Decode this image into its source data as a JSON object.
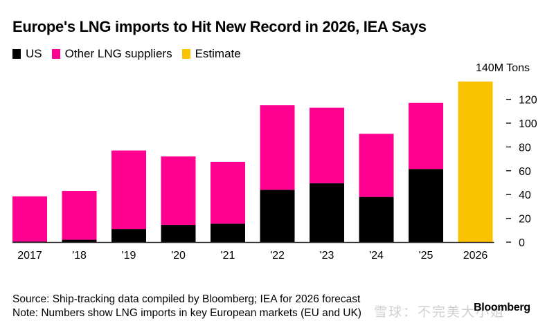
{
  "title": "Europe's LNG imports to Hit New Record in 2026, IEA Says",
  "legend": [
    {
      "label": "US",
      "color": "#000000"
    },
    {
      "label": "Other LNG suppliers",
      "color": "#ff0090"
    },
    {
      "label": "Estimate",
      "color": "#fbc200"
    }
  ],
  "footer": {
    "source": "Source: Ship-tracking data compiled by Bloomberg; IEA for 2026 forecast",
    "note": "Note: Numbers show LNG imports in key European markets (EU and UK)",
    "brand": "Bloomberg",
    "watermark": "雪球：不完美大小姐"
  },
  "chart_data": {
    "type": "bar",
    "stacked": true,
    "title": "Europe's LNG imports to Hit New Record in 2026, IEA Says",
    "xlabel": "",
    "ylabel": "M Tons",
    "y_unit_label": "140M Tons",
    "ylim": [
      0,
      140
    ],
    "yticks": [
      0,
      20,
      40,
      60,
      80,
      100,
      120,
      140
    ],
    "ytick_labels": [
      "0",
      "20",
      "40",
      "60",
      "80",
      "100",
      "120",
      "140M Tons"
    ],
    "y_axis_position": "right",
    "grid": false,
    "legend_position": "top-left",
    "categories": [
      "2017",
      "'18",
      "'19",
      "'20",
      "'21",
      "'22",
      "'23",
      "'24",
      "'25",
      "2026"
    ],
    "series": [
      {
        "name": "US",
        "color": "#000000",
        "values": [
          0.5,
          2,
          11,
          14.5,
          15.5,
          44,
          49.5,
          38,
          61.5,
          null
        ]
      },
      {
        "name": "Other LNG suppliers",
        "color": "#ff0090",
        "values": [
          38,
          41,
          66,
          57.5,
          52,
          71,
          63.5,
          53,
          55.5,
          null
        ]
      },
      {
        "name": "Estimate",
        "color": "#fbc200",
        "values": [
          null,
          null,
          null,
          null,
          null,
          null,
          null,
          null,
          null,
          135
        ]
      }
    ],
    "totals": [
      38.5,
      43,
      77,
      72,
      67.5,
      115,
      113,
      91,
      117,
      135
    ]
  }
}
